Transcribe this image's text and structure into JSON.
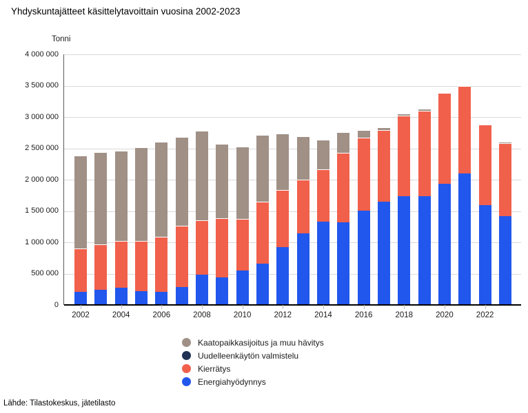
{
  "header": {
    "title": "Yhdyskuntajätteet käsittelytavoittain vuosina 2002-2023"
  },
  "footer": {
    "source": "Lähde: Tilastokeskus, jätetilasto"
  },
  "legend": [
    {
      "label": "Kaatopaikkasijoitus ja muu hävitys",
      "color": "#a09086"
    },
    {
      "label": "Uudelleenkäytön valmistelu",
      "color": "#1f3154"
    },
    {
      "label": "Kierrätys",
      "color": "#f1604b"
    },
    {
      "label": "Energiahyödynnys",
      "color": "#2157ec"
    }
  ],
  "chart_data": {
    "type": "bar",
    "stacked": true,
    "title": "Yhdyskuntajätteet käsittelytavoittain vuosina 2002-2023",
    "ylabel": "Tonni",
    "ylim": [
      0,
      4000000
    ],
    "grid": true,
    "legend_position": "bottom",
    "categories": [
      2002,
      2003,
      2004,
      2005,
      2006,
      2007,
      2008,
      2009,
      2010,
      2011,
      2012,
      2013,
      2014,
      2015,
      2016,
      2017,
      2018,
      2019,
      2020,
      2021,
      2022,
      2023
    ],
    "x_tick_labels": [
      "2002",
      "2004",
      "2006",
      "2008",
      "2010",
      "2012",
      "2014",
      "2016",
      "2018",
      "2020",
      "2022"
    ],
    "y_ticks": [
      0,
      500000,
      1000000,
      1500000,
      2000000,
      2500000,
      3000000,
      3500000,
      4000000
    ],
    "y_tick_labels": [
      "0",
      "500 000",
      "1 000 000",
      "1 500 000",
      "2 000 000",
      "2 500 000",
      "3 000 000",
      "3 500 000",
      "4 000 000"
    ],
    "series": [
      {
        "name": "Energiahyödynnys",
        "color": "#2157ec",
        "values": [
          210000,
          240000,
          275000,
          220000,
          210000,
          290000,
          480000,
          440000,
          550000,
          660000,
          925000,
          1140000,
          1325000,
          1315000,
          1510000,
          1645000,
          1735000,
          1735000,
          1935000,
          2100000,
          1590000,
          1420000
        ]
      },
      {
        "name": "Kierrätys",
        "color": "#f1604b",
        "values": [
          690000,
          730000,
          745000,
          800000,
          875000,
          970000,
          875000,
          940000,
          820000,
          990000,
          910000,
          860000,
          840000,
          1110000,
          1160000,
          1150000,
          1290000,
          1360000,
          1445000,
          1395000,
          1285000,
          1160000
        ]
      },
      {
        "name": "Uudelleenkäytön valmistelu",
        "color": "#1f3154",
        "values": [
          0,
          0,
          0,
          0,
          0,
          0,
          0,
          0,
          0,
          0,
          0,
          0,
          0,
          0,
          0,
          0,
          0,
          0,
          0,
          0,
          0,
          0
        ]
      },
      {
        "name": "Kaatopaikkasijoitus ja muu hävitys",
        "color": "#a09086",
        "values": [
          1490000,
          1470000,
          1440000,
          1495000,
          1520000,
          1420000,
          1425000,
          1190000,
          1155000,
          1060000,
          900000,
          690000,
          470000,
          330000,
          120000,
          35000,
          25000,
          35000,
          20000,
          0,
          0,
          25000
        ]
      }
    ]
  }
}
